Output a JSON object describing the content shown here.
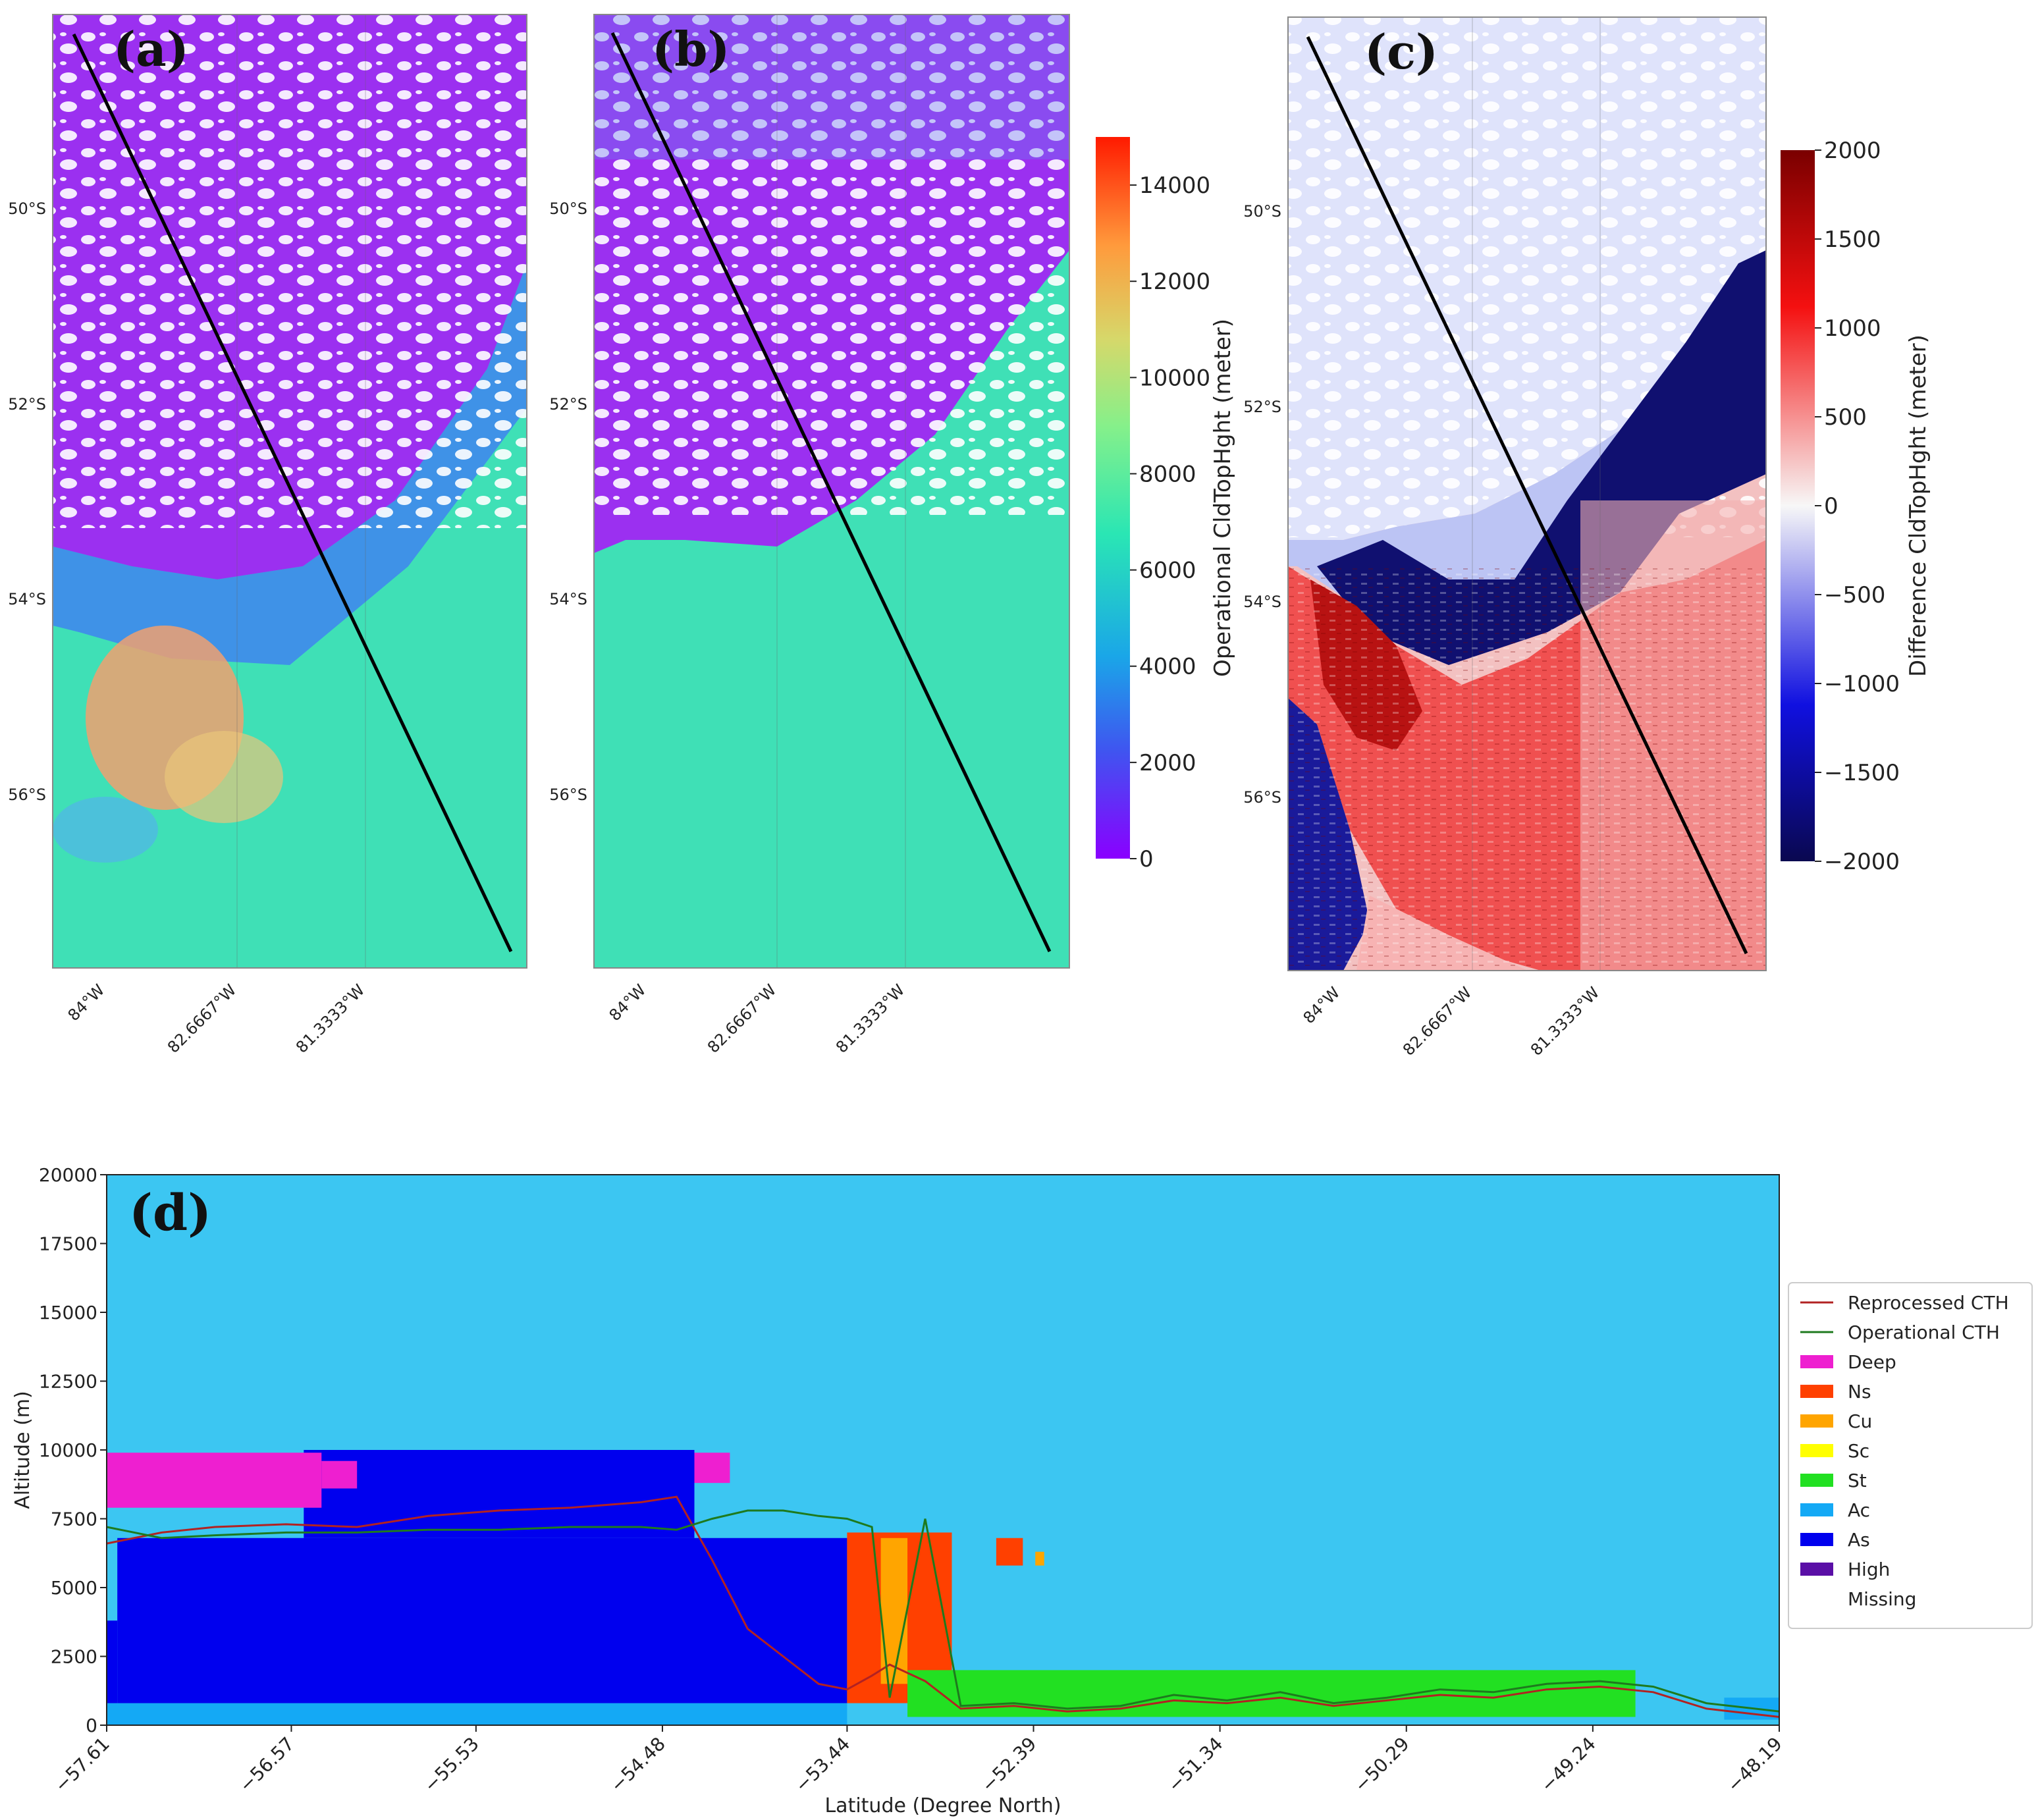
{
  "chart_data": [
    {
      "panel": "(a)",
      "type": "heatmap",
      "title": "",
      "lat_ticks": [
        "50°S",
        "52°S",
        "54°S",
        "56°S"
      ],
      "lon_ticks": [
        "84°W",
        "82.6667°W",
        "81.3333°W"
      ],
      "colorbar": {
        "label": "Operational CldTopHght (meter)",
        "range": [
          0,
          15000
        ],
        "ticks": [
          "0",
          "2000",
          "4000",
          "6000",
          "8000",
          "10000",
          "12000",
          "14000"
        ],
        "tick_values": [
          0,
          2000,
          4000,
          6000,
          8000,
          10000,
          12000,
          14000
        ]
      }
    },
    {
      "panel": "(b)",
      "type": "heatmap",
      "title": "",
      "lat_ticks": [
        "50°S",
        "52°S",
        "54°S",
        "56°S"
      ],
      "lon_ticks": [
        "84°W",
        "82.6667°W",
        "81.3333°W"
      ]
    },
    {
      "panel": "(c)",
      "type": "heatmap",
      "title": "",
      "lat_ticks": [
        "50°S",
        "52°S",
        "54°S",
        "56°S"
      ],
      "lon_ticks": [
        "84°W",
        "82.6667°W",
        "81.3333°W"
      ],
      "colorbar": {
        "label": "Difference CldTopHght (meter)",
        "range": [
          -2000,
          2000
        ],
        "ticks": [
          "2000",
          "1500",
          "1000",
          "500",
          "0",
          "−500",
          "−1000",
          "−1500",
          "−2000"
        ],
        "tick_values": [
          2000,
          1500,
          1000,
          500,
          0,
          -500,
          -1000,
          -1500,
          -2000
        ]
      }
    },
    {
      "panel": "(d)",
      "type": "area",
      "title": "",
      "xlabel": "Latitude (Degree North)",
      "ylabel": "Altitude (m)",
      "xlim": [
        -57.61,
        -48.19
      ],
      "ylim": [
        0,
        20000
      ],
      "x_ticks": [
        "−57.61",
        "−56.57",
        "−55.53",
        "−54.48",
        "−53.44",
        "−52.39",
        "−51.34",
        "−50.29",
        "−49.24",
        "−48.19"
      ],
      "x_tick_values": [
        -57.61,
        -56.57,
        -55.53,
        -54.48,
        -53.44,
        -52.39,
        -51.34,
        -50.29,
        -49.24,
        -48.19
      ],
      "y_ticks": [
        "0",
        "2500",
        "5000",
        "7500",
        "10000",
        "12500",
        "15000",
        "17500",
        "20000"
      ],
      "y_tick_values": [
        0,
        2500,
        5000,
        7500,
        10000,
        12500,
        15000,
        17500,
        20000
      ],
      "legend": {
        "placement": "right",
        "entries": [
          {
            "label": "Reprocessed CTH",
            "kind": "line",
            "color": "#b22222"
          },
          {
            "label": "Operational CTH",
            "kind": "line",
            "color": "#1e7a1e"
          },
          {
            "label": "Deep",
            "kind": "patch",
            "color": "#ee1fd0"
          },
          {
            "label": "Ns",
            "kind": "patch",
            "color": "#ff4000"
          },
          {
            "label": "Cu",
            "kind": "patch",
            "color": "#ffa500"
          },
          {
            "label": "Sc",
            "kind": "patch",
            "color": "#ffff00"
          },
          {
            "label": "St",
            "kind": "patch",
            "color": "#22e022"
          },
          {
            "label": "Ac",
            "kind": "patch",
            "color": "#14a9f5"
          },
          {
            "label": "As",
            "kind": "patch",
            "color": "#0000ee"
          },
          {
            "label": "High",
            "kind": "patch",
            "color": "#5a0fa6"
          },
          {
            "label": "Missing",
            "kind": "patch",
            "color": "#ffffff"
          }
        ]
      },
      "background_color": "#3cc6f2",
      "cloud_layers": [
        {
          "class": "Ac",
          "lat": [
            -57.61,
            -53.44
          ],
          "base_m": 0,
          "top_m": 800
        },
        {
          "class": "As",
          "lat": [
            -57.61,
            -57.55
          ],
          "base_m": 800,
          "top_m": 3800
        },
        {
          "class": "As",
          "lat": [
            -57.55,
            -53.44
          ],
          "base_m": 800,
          "top_m": 6800
        },
        {
          "class": "As",
          "lat": [
            -56.5,
            -54.3
          ],
          "base_m": 6800,
          "top_m": 10000
        },
        {
          "class": "Deep",
          "lat": [
            -57.61,
            -56.4
          ],
          "base_m": 7900,
          "top_m": 9900
        },
        {
          "class": "Deep",
          "lat": [
            -56.4,
            -56.2
          ],
          "base_m": 8600,
          "top_m": 9600
        },
        {
          "class": "Deep",
          "lat": [
            -54.3,
            -54.1
          ],
          "base_m": 8800,
          "top_m": 9900
        },
        {
          "class": "Ns",
          "lat": [
            -53.44,
            -52.85
          ],
          "base_m": 800,
          "top_m": 7000
        },
        {
          "class": "Cu",
          "lat": [
            -53.25,
            -53.1
          ],
          "base_m": 1500,
          "top_m": 6800
        },
        {
          "class": "Ns",
          "lat": [
            -52.6,
            -52.45
          ],
          "base_m": 5800,
          "top_m": 6800
        },
        {
          "class": "Cu",
          "lat": [
            -52.38,
            -52.33
          ],
          "base_m": 5800,
          "top_m": 6300
        },
        {
          "class": "St",
          "lat": [
            -53.1,
            -49.0
          ],
          "base_m": 300,
          "top_m": 2000
        },
        {
          "class": "Ac",
          "lat": [
            -48.5,
            -48.19
          ],
          "base_m": 200,
          "top_m": 1000
        }
      ],
      "series": [
        {
          "name": "Reprocessed CTH",
          "x": [
            -57.61,
            -57.3,
            -57.0,
            -56.6,
            -56.2,
            -55.8,
            -55.4,
            -55.0,
            -54.6,
            -54.4,
            -54.2,
            -54.0,
            -53.8,
            -53.6,
            -53.44,
            -53.3,
            -53.2,
            -53.0,
            -52.8,
            -52.5,
            -52.2,
            -51.9,
            -51.6,
            -51.3,
            -51.0,
            -50.7,
            -50.4,
            -50.1,
            -49.8,
            -49.5,
            -49.2,
            -48.9,
            -48.6,
            -48.19
          ],
          "values": [
            6600,
            7000,
            7200,
            7300,
            7200,
            7600,
            7800,
            7900,
            8100,
            8300,
            6000,
            3500,
            2500,
            1500,
            1300,
            1800,
            2200,
            1600,
            600,
            700,
            500,
            600,
            900,
            800,
            1000,
            700,
            900,
            1100,
            1000,
            1300,
            1400,
            1200,
            600,
            300
          ]
        },
        {
          "name": "Operational CTH",
          "x": [
            -57.61,
            -57.3,
            -57.0,
            -56.6,
            -56.2,
            -55.8,
            -55.4,
            -55.0,
            -54.6,
            -54.4,
            -54.2,
            -54.0,
            -53.8,
            -53.6,
            -53.44,
            -53.3,
            -53.2,
            -53.0,
            -52.8,
            -52.5,
            -52.2,
            -51.9,
            -51.6,
            -51.3,
            -51.0,
            -50.7,
            -50.4,
            -50.1,
            -49.8,
            -49.5,
            -49.2,
            -48.9,
            -48.6,
            -48.19
          ],
          "values": [
            7200,
            6800,
            6900,
            7000,
            7000,
            7100,
            7100,
            7200,
            7200,
            7100,
            7500,
            7800,
            7800,
            7600,
            7500,
            7200,
            1000,
            7500,
            700,
            800,
            600,
            700,
            1100,
            900,
            1200,
            800,
            1000,
            1300,
            1200,
            1500,
            1600,
            1400,
            800,
            500
          ]
        }
      ]
    }
  ]
}
